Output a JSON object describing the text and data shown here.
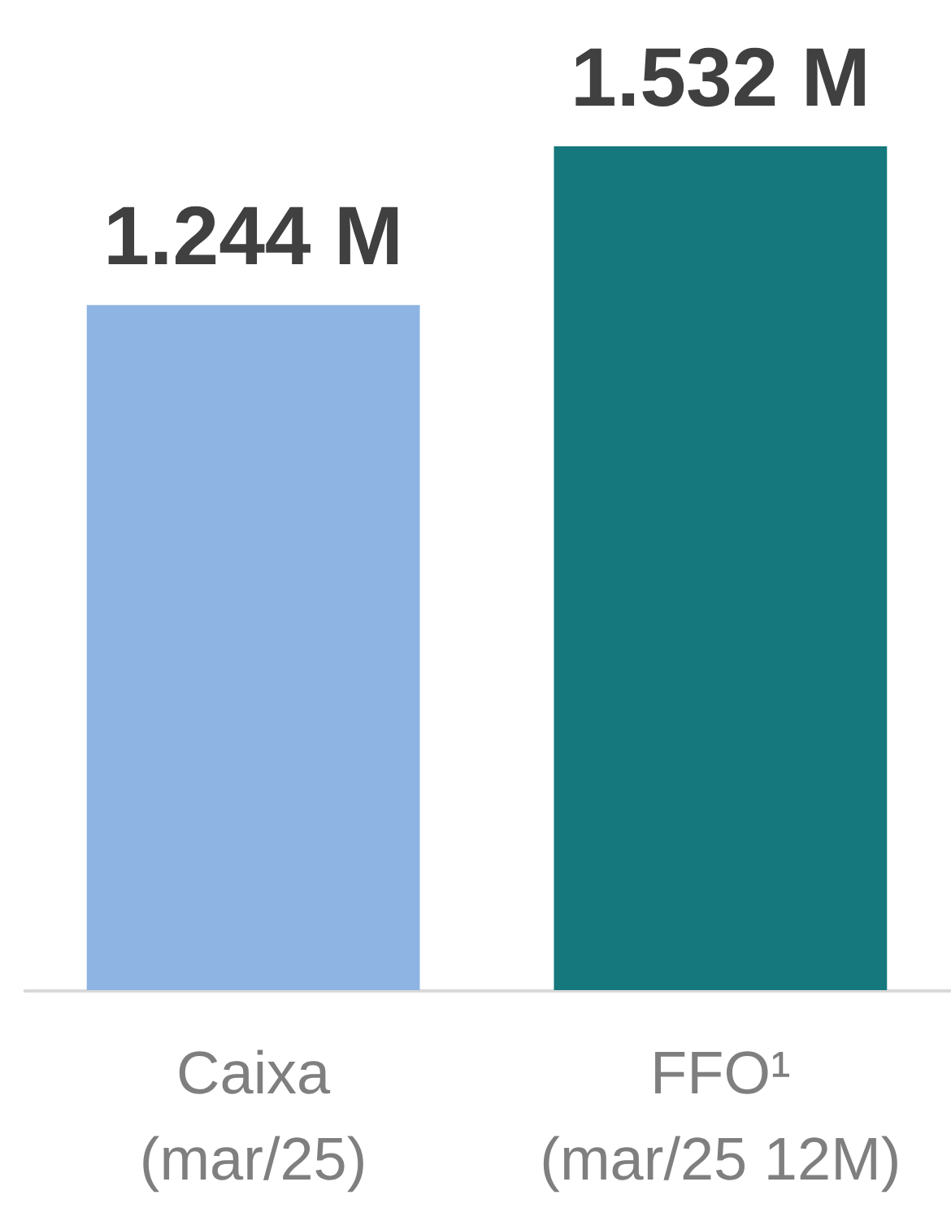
{
  "chart_data": {
    "type": "bar",
    "categories": [
      "Caixa\n(mar/25)",
      "FFO¹\n(mar/25 12M)"
    ],
    "values": [
      1.244,
      1.532
    ],
    "colors": [
      "#8eb4e3",
      "#14787c"
    ],
    "value_labels": [
      "1.244 M",
      "1.532 M"
    ],
    "grid": false,
    "legend": false
  }
}
